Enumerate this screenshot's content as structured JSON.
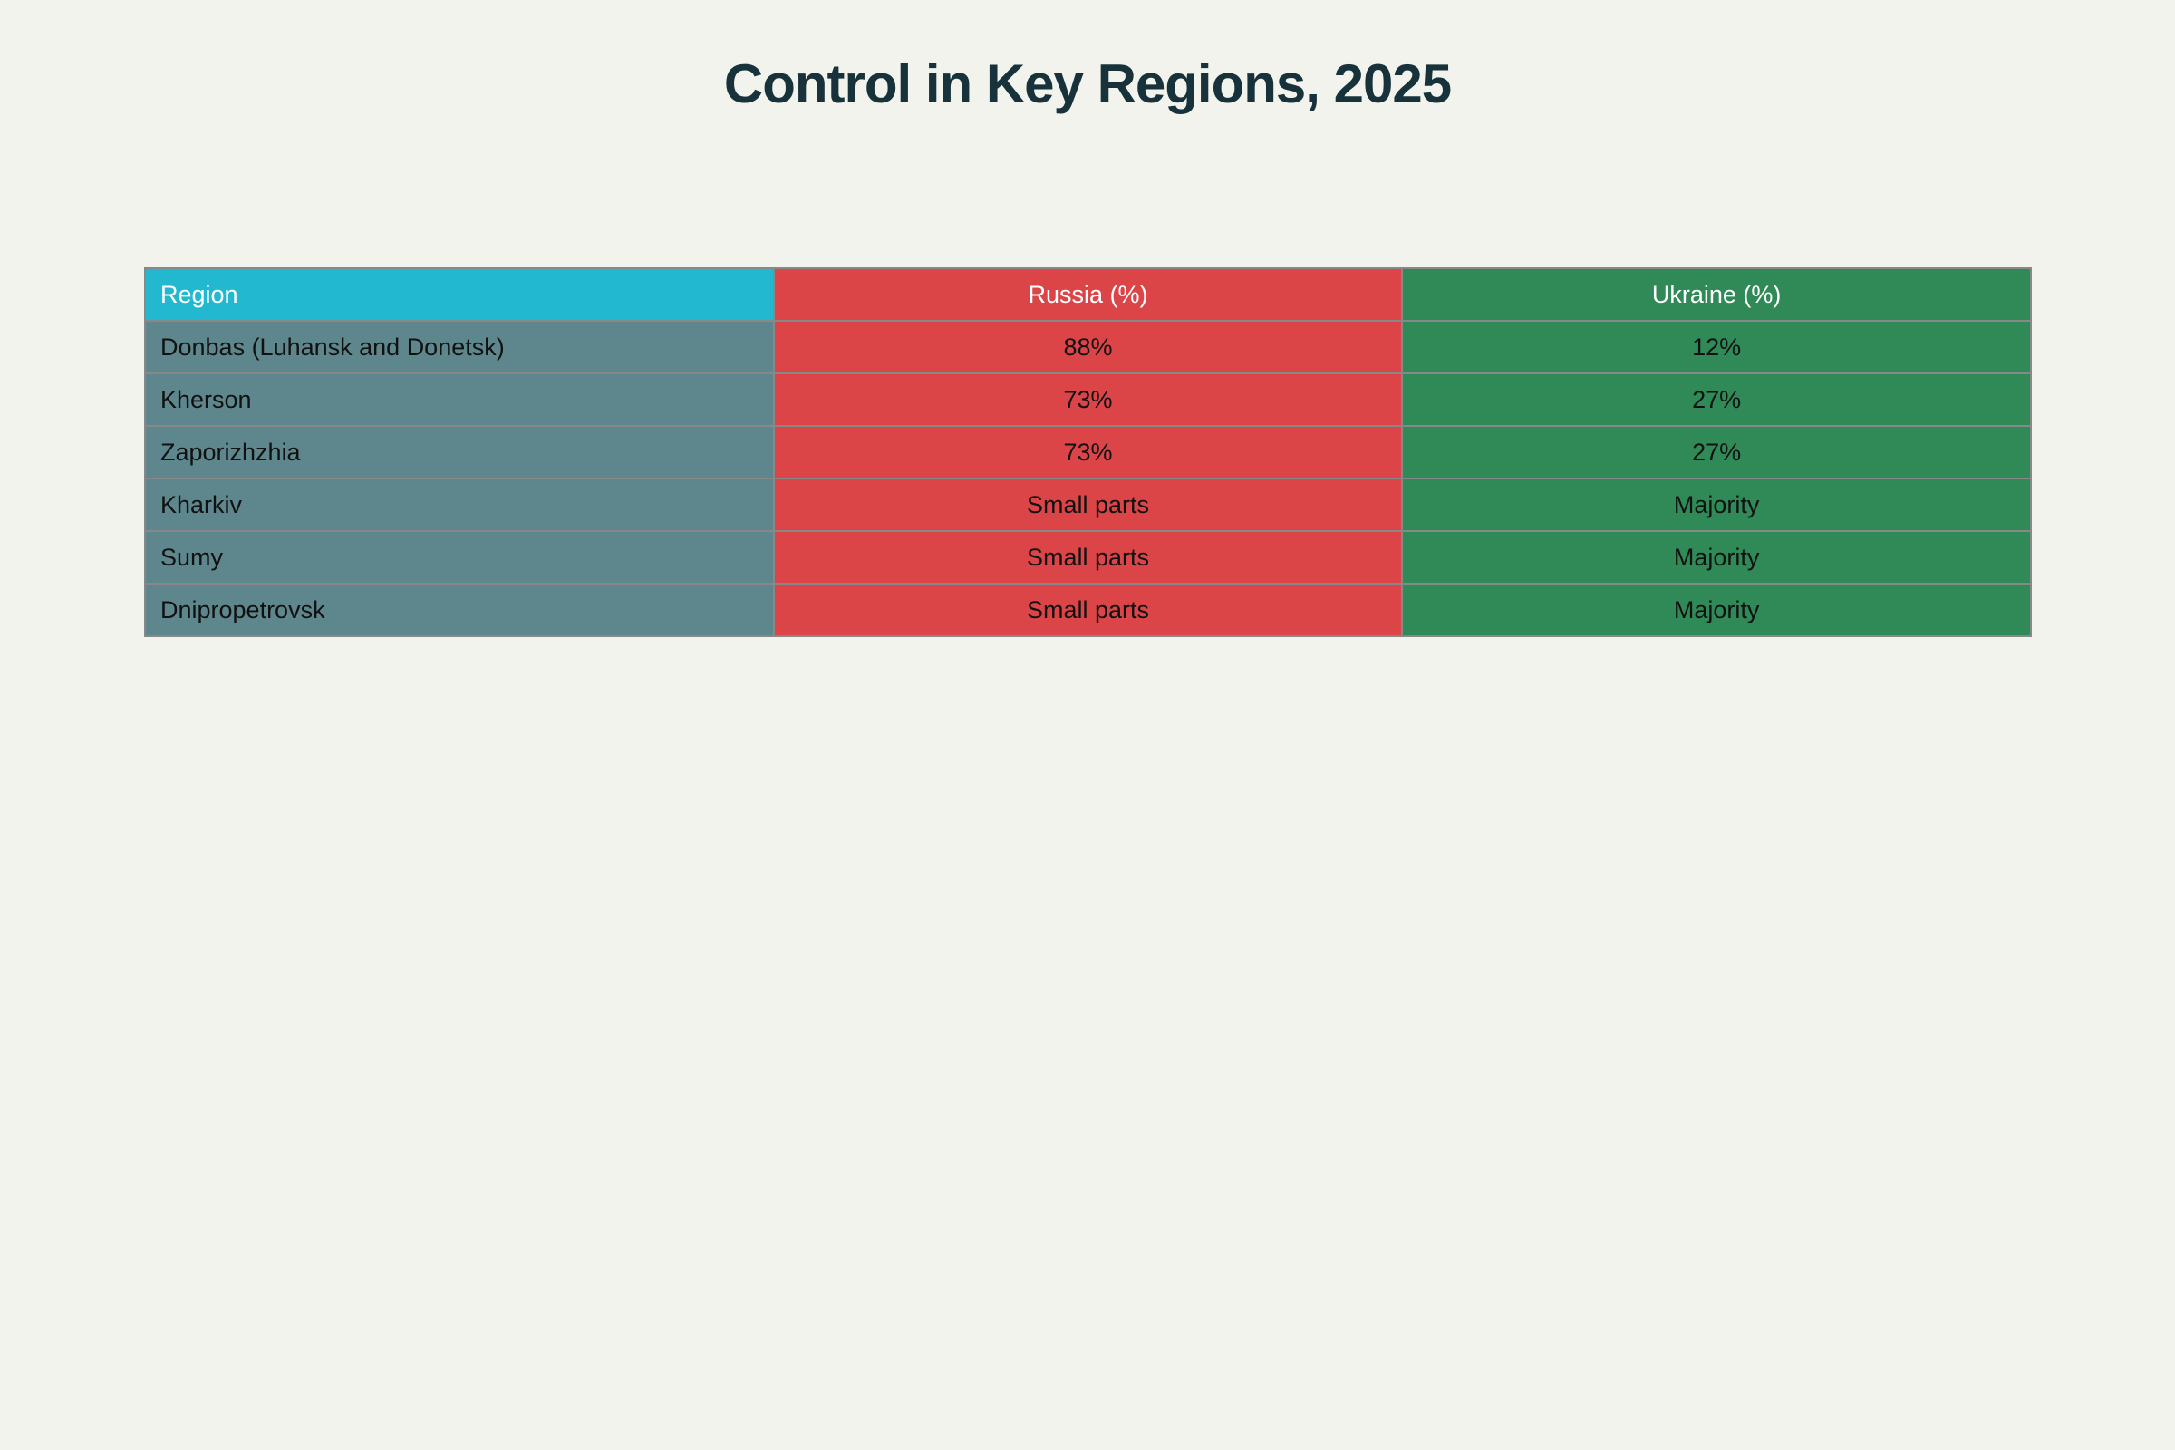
{
  "chart_data": {
    "type": "table",
    "title": "Control in Key Regions, 2025",
    "columns": [
      "Region",
      "Russia (%)",
      "Ukraine (%)"
    ],
    "rows": [
      [
        "Donbas (Luhansk and Donetsk)",
        "88%",
        "12%"
      ],
      [
        "Kherson",
        "73%",
        "27%"
      ],
      [
        "Zaporizhzhia",
        "73%",
        "27%"
      ],
      [
        "Kharkiv",
        "Small parts",
        "Majority"
      ],
      [
        "Sumy",
        "Small parts",
        "Majority"
      ],
      [
        "Dnipropetrovsk",
        "Small parts",
        "Majority"
      ]
    ],
    "colors": {
      "header_region": "#22b8cf",
      "region_column": "#5e878d",
      "russia_column": "#db4547",
      "ukraine_column": "#2f8a57",
      "title": "#17323a",
      "background": "#f3f3ee"
    }
  }
}
